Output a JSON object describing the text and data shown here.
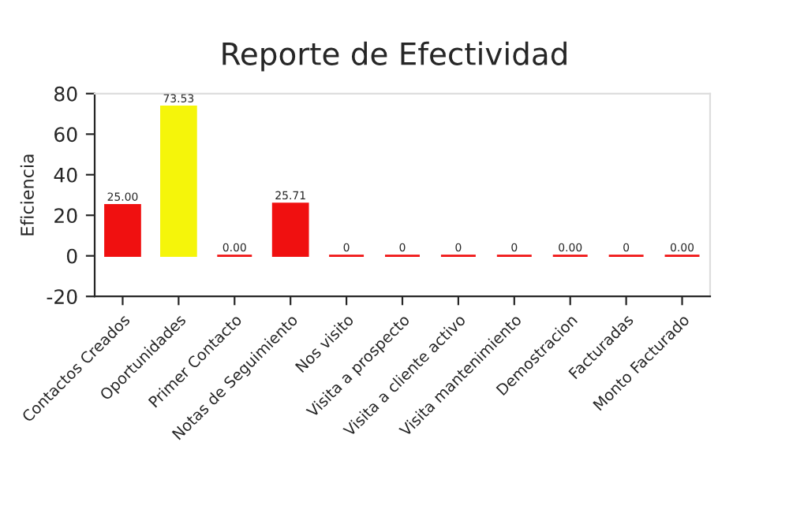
{
  "chart_data": {
    "type": "bar",
    "title": "Reporte de Efectividad",
    "ylabel": "Eficiencia",
    "categories": [
      "Contactos Creados",
      "Oportunidades",
      "Primer Contacto",
      "Notas de Seguimiento",
      "Nos visito",
      "Visita a prospecto",
      "Visita a cliente activo",
      "Visita mantenimiento",
      "Demostracion",
      "Facturadas",
      "Monto Facturado"
    ],
    "values": [
      25.0,
      73.53,
      0,
      25.71,
      0,
      0,
      0,
      0,
      0,
      0,
      0
    ],
    "value_labels": [
      "25.00",
      "73.53",
      "0.00",
      "25.71",
      "0",
      "0",
      "0",
      "0",
      "0.00",
      "0",
      "0.00"
    ],
    "colors": [
      "#f01010",
      "#f5f50a",
      "#f01010",
      "#f01010",
      "#f01010",
      "#f01010",
      "#f01010",
      "#f01010",
      "#f01010",
      "#f01010",
      "#f01010"
    ],
    "ylim": [
      -20,
      80
    ],
    "yticks": [
      -20,
      0,
      20,
      40,
      60,
      80
    ],
    "grid": false,
    "legend": false
  }
}
